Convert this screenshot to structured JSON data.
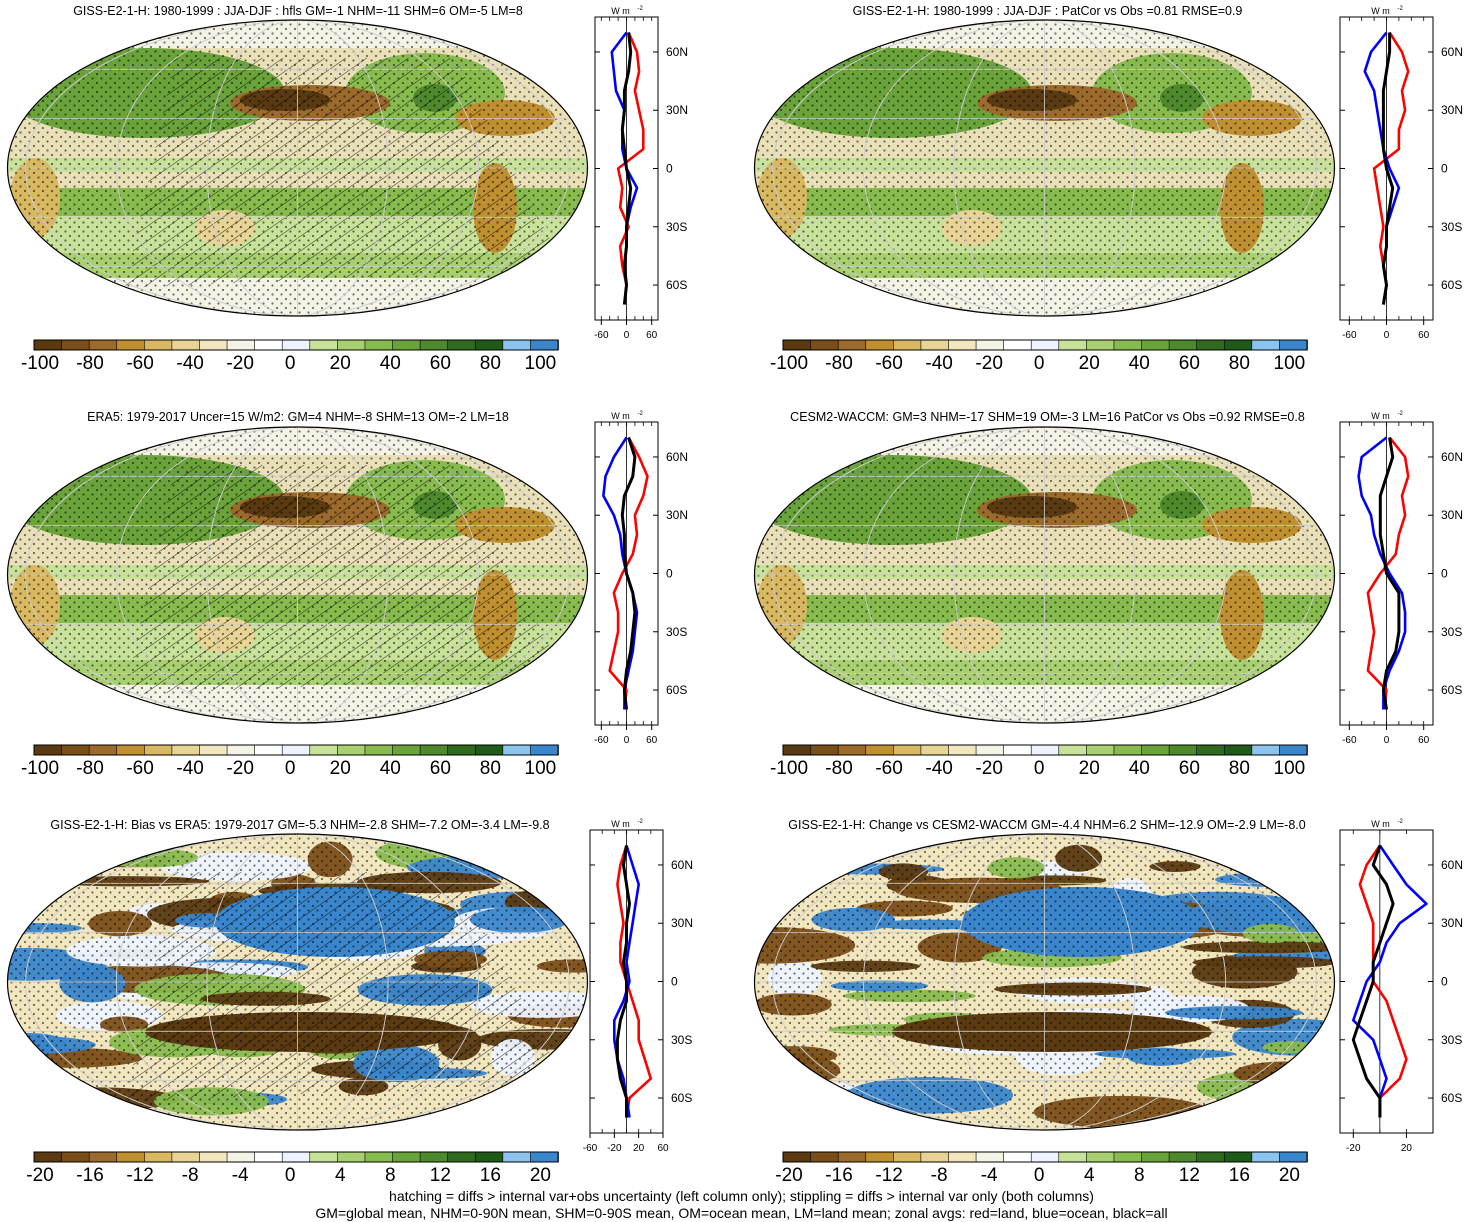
{
  "palette": [
    "#5a3a10",
    "#7a4e18",
    "#9c6a2a",
    "#c09030",
    "#d8b860",
    "#e8d494",
    "#f2e6bf",
    "#f5f2e6",
    "#ffffff",
    "#eef4ff",
    "#c8e29a",
    "#a8d070",
    "#88bb4e",
    "#6aa33a",
    "#4e8a2c",
    "#2f6a1e",
    "#1e5a18",
    "#8cc4f0",
    "#3a86cc"
  ],
  "panels": [
    {
      "title": "GISS-E2-1-H: 1980-1999 : JJA-DJF : hfls GM=-1 NHM=-11 SHM=6 OM=-5 LM=8",
      "colorbar_labels": [
        "-100",
        "-80",
        "-60",
        "-40",
        "-20",
        "0",
        "20",
        "40",
        "60",
        "80",
        "100"
      ],
      "zonal_xticks": [
        "-60",
        "0",
        "60"
      ],
      "zonal_xlim": [
        -75,
        75
      ]
    },
    {
      "title": "GISS-E2-1-H: 1980-1999 : JJA-DJF : PatCor vs Obs =0.81 RMSE=0.9",
      "colorbar_labels": [
        "-100",
        "-80",
        "-60",
        "-40",
        "-20",
        "0",
        "20",
        "40",
        "60",
        "80",
        "100"
      ],
      "zonal_xticks": [
        "-60",
        "0",
        "60"
      ],
      "zonal_xlim": [
        -75,
        75
      ]
    },
    {
      "title": "ERA5: 1979-2017 Uncer=15 W/m2: GM=4 NHM=-8 SHM=13 OM=-2 LM=18",
      "colorbar_labels": [
        "-100",
        "-80",
        "-60",
        "-40",
        "-20",
        "0",
        "20",
        "40",
        "60",
        "80",
        "100"
      ],
      "zonal_xticks": [
        "-60",
        "0",
        "60"
      ],
      "zonal_xlim": [
        -75,
        75
      ]
    },
    {
      "title": "CESM2-WACCM: GM=3 NHM=-17 SHM=19 OM=-3 LM=16 PatCor vs Obs =0.92 RMSE=0.8",
      "colorbar_labels": [
        "-100",
        "-80",
        "-60",
        "-40",
        "-20",
        "0",
        "20",
        "40",
        "60",
        "80",
        "100"
      ],
      "zonal_xticks": [
        "-60",
        "0",
        "60"
      ],
      "zonal_xlim": [
        -75,
        75
      ]
    },
    {
      "title": "GISS-E2-1-H: Bias vs ERA5: 1979-2017 GM=-5.3 NHM=-2.8 SHM=-7.2 OM=-3.4 LM=-9.8",
      "colorbar_labels": [
        "-20",
        "-16",
        "-12",
        "-8",
        "-4",
        "0",
        "4",
        "8",
        "12",
        "16",
        "20"
      ],
      "zonal_xticks": [
        "-60",
        "-20",
        "20",
        "60"
      ],
      "zonal_xlim": [
        -60,
        60
      ]
    },
    {
      "title": "GISS-E2-1-H: Change vs CESM2-WACCM GM=-4.4 NHM=6.2 SHM=-12.9 OM=-2.9 LM=-8.0",
      "colorbar_labels": [
        "-20",
        "-16",
        "-12",
        "-8",
        "-4",
        "0",
        "4",
        "8",
        "12",
        "16",
        "20"
      ],
      "zonal_xticks": [
        "-20",
        "20"
      ],
      "zonal_xlim": [
        -30,
        40
      ]
    }
  ],
  "zonal": {
    "units_label": "W m",
    "units_exp": "-2",
    "lat_ticks": [
      "60N",
      "30N",
      "0",
      "30S",
      "60S"
    ]
  },
  "chart_data": [
    {
      "type": "line",
      "title": "GISS-E2-1-H: 1980-1999 : JJA-DJF : hfls GM=-1 NHM=-11 SHM=6 OM=-5 LM=8",
      "y": [
        70,
        60,
        50,
        40,
        30,
        20,
        10,
        0,
        -10,
        -20,
        -30,
        -40,
        -50,
        -60,
        -70
      ],
      "series": [
        {
          "color": "#ff0000",
          "values": [
            5,
            25,
            30,
            20,
            30,
            40,
            40,
            -20,
            -10,
            -15,
            5,
            -15,
            -10,
            0,
            -5
          ]
        },
        {
          "color": "#0000ff",
          "values": [
            0,
            -35,
            -30,
            -25,
            -5,
            -10,
            -10,
            0,
            25,
            10,
            0,
            0,
            -5,
            0,
            -5
          ]
        },
        {
          "color": "#000000",
          "values": [
            5,
            10,
            5,
            -5,
            -5,
            -10,
            -5,
            0,
            10,
            5,
            0,
            0,
            -5,
            0,
            -5
          ]
        }
      ]
    },
    {
      "type": "line",
      "title": "GISS-E2-1-H: 1980-1999 : JJA-DJF : PatCor vs Obs =0.81 RMSE=0.9",
      "y": [
        70,
        60,
        50,
        40,
        30,
        20,
        10,
        0,
        -10,
        -20,
        -30,
        -40,
        -50,
        -60,
        -70
      ],
      "series": [
        {
          "color": "#ff0000",
          "values": [
            5,
            25,
            35,
            25,
            30,
            20,
            20,
            -20,
            -15,
            -10,
            -5,
            -10,
            -5,
            0,
            -5
          ]
        },
        {
          "color": "#0000ff",
          "values": [
            0,
            -25,
            -35,
            -20,
            -15,
            -10,
            -5,
            5,
            20,
            10,
            0,
            0,
            -5,
            0,
            -5
          ]
        },
        {
          "color": "#000000",
          "values": [
            5,
            5,
            0,
            -5,
            -5,
            -5,
            -5,
            0,
            10,
            5,
            0,
            0,
            -5,
            0,
            -5
          ]
        }
      ]
    },
    {
      "type": "line",
      "title": "ERA5: 1979-2017 Uncer=15 W/m2: GM=4 NHM=-8 SHM=13 OM=-2 LM=18",
      "y": [
        70,
        60,
        50,
        40,
        30,
        20,
        10,
        0,
        -10,
        -20,
        -30,
        -40,
        -50,
        -60,
        -70
      ],
      "series": [
        {
          "color": "#ff0000",
          "values": [
            5,
            30,
            50,
            40,
            20,
            25,
            15,
            -10,
            -30,
            -20,
            -20,
            -30,
            -40,
            0,
            -5
          ]
        },
        {
          "color": "#0000ff",
          "values": [
            0,
            -30,
            -50,
            -55,
            -30,
            -15,
            -10,
            0,
            15,
            25,
            20,
            15,
            5,
            -5,
            -5
          ]
        },
        {
          "color": "#000000",
          "values": [
            5,
            20,
            15,
            -5,
            -10,
            -5,
            -5,
            0,
            15,
            20,
            15,
            10,
            0,
            -5,
            0
          ]
        }
      ]
    },
    {
      "type": "line",
      "title": "CESM2-WACCM: GM=3 NHM=-17 SHM=19 OM=-3 LM=16 PatCor vs Obs =0.92 RMSE=0.8",
      "y": [
        70,
        60,
        50,
        40,
        30,
        20,
        10,
        0,
        -10,
        -20,
        -30,
        -40,
        -50,
        -60,
        -70
      ],
      "series": [
        {
          "color": "#ff0000",
          "values": [
            5,
            30,
            35,
            25,
            30,
            20,
            15,
            -10,
            -30,
            -25,
            -20,
            -25,
            -30,
            0,
            -5
          ]
        },
        {
          "color": "#0000ff",
          "values": [
            0,
            -40,
            -45,
            -40,
            -25,
            -20,
            -10,
            5,
            25,
            30,
            30,
            20,
            5,
            -5,
            -5
          ]
        },
        {
          "color": "#000000",
          "values": [
            5,
            10,
            0,
            -10,
            -10,
            -10,
            -5,
            0,
            20,
            20,
            20,
            15,
            0,
            -5,
            0
          ]
        }
      ]
    },
    {
      "type": "line",
      "title": "GISS-E2-1-H: Bias vs ERA5: 1979-2017 GM=-5.3 NHM=-2.8 SHM=-7.2 OM=-3.4 LM=-9.8",
      "y": [
        70,
        60,
        50,
        40,
        30,
        20,
        10,
        0,
        -10,
        -20,
        -30,
        -40,
        -50,
        -60,
        -70
      ],
      "series": [
        {
          "color": "#ff0000",
          "values": [
            0,
            -10,
            -15,
            -10,
            -5,
            -10,
            -10,
            0,
            10,
            20,
            20,
            30,
            40,
            5,
            0
          ]
        },
        {
          "color": "#0000ff",
          "values": [
            0,
            10,
            20,
            15,
            10,
            5,
            0,
            5,
            -5,
            -20,
            -20,
            -15,
            -5,
            0,
            5
          ]
        },
        {
          "color": "#000000",
          "values": [
            0,
            -5,
            0,
            5,
            0,
            0,
            -5,
            0,
            0,
            -10,
            -15,
            -15,
            -10,
            0,
            0
          ]
        }
      ]
    },
    {
      "type": "line",
      "title": "GISS-E2-1-H: Change vs CESM2-WACCM GM=-4.4 NHM=6.2 SHM=-12.9 OM=-2.9 LM=-8.0",
      "y": [
        70,
        60,
        50,
        40,
        30,
        20,
        10,
        0,
        -10,
        -20,
        -30,
        -40,
        -50,
        -60,
        -70
      ],
      "series": [
        {
          "color": "#ff0000",
          "values": [
            0,
            -10,
            -15,
            -10,
            -5,
            -5,
            -5,
            -5,
            5,
            10,
            15,
            20,
            15,
            0,
            0
          ]
        },
        {
          "color": "#0000ff",
          "values": [
            0,
            10,
            20,
            35,
            15,
            5,
            0,
            -10,
            -15,
            -20,
            -5,
            0,
            5,
            0,
            0
          ]
        },
        {
          "color": "#000000",
          "values": [
            0,
            -5,
            5,
            10,
            5,
            0,
            -5,
            -5,
            -10,
            -15,
            -20,
            -15,
            -10,
            0,
            0
          ]
        }
      ]
    }
  ],
  "footer": {
    "line1": "hatching = diffs > internal var+obs uncertainty (left column only); stippling = diffs > internal var only (both columns)",
    "line2": "GM=global mean, NHM=0-90N mean, SHM=0-90S mean, OM=ocean mean, LM=land mean; zonal avgs: red=land, blue=ocean, black=all"
  }
}
